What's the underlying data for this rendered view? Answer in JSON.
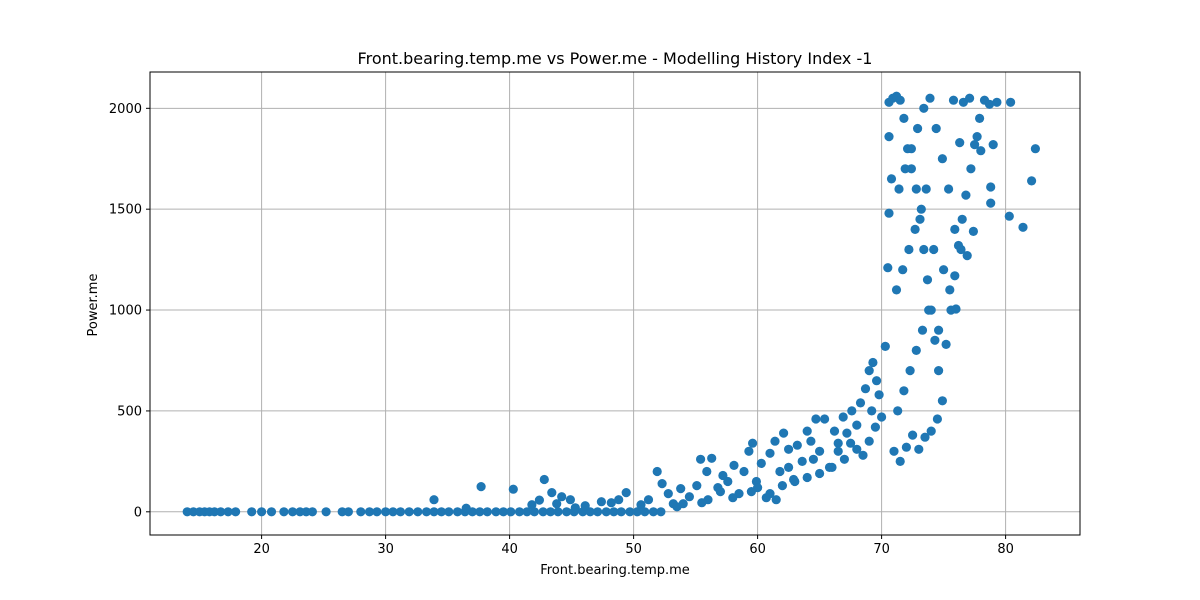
{
  "chart_data": {
    "type": "scatter",
    "title": "Front.bearing.temp.me vs Power.me - Modelling History Index -1",
    "xlabel": "Front.bearing.temp.me",
    "ylabel": "Power.me",
    "xlim": [
      11,
      86
    ],
    "ylim": [
      -115,
      2180
    ],
    "xticks": [
      20,
      30,
      40,
      50,
      60,
      70,
      80
    ],
    "yticks": [
      0,
      500,
      1000,
      1500,
      2000
    ],
    "grid": true,
    "legend": "none",
    "marker_color": "#1f77b4",
    "series": [
      {
        "points": [
          [
            14.0,
            0
          ],
          [
            14.5,
            0
          ],
          [
            15.0,
            0
          ],
          [
            15.4,
            0
          ],
          [
            15.8,
            0
          ],
          [
            16.2,
            0
          ],
          [
            16.7,
            0
          ],
          [
            17.3,
            0
          ],
          [
            17.9,
            0
          ],
          [
            19.2,
            0
          ],
          [
            20.0,
            0
          ],
          [
            20.8,
            0
          ],
          [
            21.8,
            0
          ],
          [
            22.5,
            0
          ],
          [
            23.1,
            0
          ],
          [
            23.6,
            0
          ],
          [
            24.1,
            0
          ],
          [
            25.2,
            0
          ],
          [
            26.5,
            0
          ],
          [
            27.0,
            0
          ],
          [
            28.0,
            0
          ],
          [
            28.7,
            0
          ],
          [
            29.3,
            0
          ],
          [
            30.0,
            0
          ],
          [
            30.6,
            0
          ],
          [
            31.2,
            0
          ],
          [
            31.9,
            0
          ],
          [
            32.6,
            0
          ],
          [
            33.3,
            0
          ],
          [
            33.9,
            0
          ],
          [
            34.5,
            0
          ],
          [
            35.1,
            0
          ],
          [
            35.8,
            0
          ],
          [
            36.4,
            0
          ],
          [
            37.0,
            0
          ],
          [
            37.6,
            0
          ],
          [
            38.2,
            0
          ],
          [
            38.9,
            0
          ],
          [
            39.5,
            0
          ],
          [
            40.1,
            0
          ],
          [
            40.8,
            0
          ],
          [
            41.4,
            0
          ],
          [
            42.0,
            0
          ],
          [
            42.7,
            0
          ],
          [
            43.3,
            0
          ],
          [
            43.9,
            0
          ],
          [
            44.6,
            0
          ],
          [
            45.2,
            0
          ],
          [
            45.9,
            0
          ],
          [
            46.5,
            0
          ],
          [
            47.1,
            0
          ],
          [
            47.8,
            0
          ],
          [
            48.4,
            0
          ],
          [
            49.0,
            0
          ],
          [
            49.7,
            0
          ],
          [
            50.3,
            0
          ],
          [
            50.9,
            0
          ],
          [
            51.6,
            0
          ],
          [
            52.2,
            0
          ],
          [
            33.9,
            60
          ],
          [
            36.5,
            18
          ],
          [
            37.7,
            125
          ],
          [
            40.3,
            112
          ],
          [
            41.8,
            35
          ],
          [
            42.4,
            58
          ],
          [
            42.8,
            160
          ],
          [
            43.4,
            95
          ],
          [
            43.8,
            40
          ],
          [
            44.2,
            75
          ],
          [
            44.9,
            60
          ],
          [
            45.3,
            20
          ],
          [
            46.1,
            30
          ],
          [
            47.4,
            50
          ],
          [
            48.2,
            45
          ],
          [
            48.8,
            60
          ],
          [
            49.4,
            95
          ],
          [
            50.6,
            35
          ],
          [
            51.2,
            60
          ],
          [
            51.9,
            200
          ],
          [
            52.3,
            140
          ],
          [
            52.8,
            90
          ],
          [
            53.2,
            40
          ],
          [
            53.8,
            115
          ],
          [
            54.5,
            75
          ],
          [
            55.1,
            130
          ],
          [
            55.4,
            260
          ],
          [
            55.9,
            200
          ],
          [
            56.3,
            265
          ],
          [
            56.8,
            120
          ],
          [
            57.2,
            180
          ],
          [
            57.6,
            150
          ],
          [
            58.1,
            230
          ],
          [
            58.5,
            90
          ],
          [
            58.9,
            200
          ],
          [
            59.3,
            300
          ],
          [
            59.6,
            340
          ],
          [
            59.9,
            150
          ],
          [
            60.3,
            240
          ],
          [
            60.7,
            70
          ],
          [
            61.0,
            290
          ],
          [
            61.4,
            350
          ],
          [
            61.8,
            200
          ],
          [
            62.1,
            390
          ],
          [
            62.5,
            310
          ],
          [
            62.9,
            160
          ],
          [
            63.2,
            330
          ],
          [
            63.6,
            250
          ],
          [
            64.0,
            400
          ],
          [
            64.3,
            350
          ],
          [
            64.7,
            460
          ],
          [
            65.0,
            300
          ],
          [
            65.4,
            460
          ],
          [
            65.8,
            220
          ],
          [
            66.2,
            400
          ],
          [
            66.5,
            340
          ],
          [
            66.9,
            470
          ],
          [
            67.2,
            390
          ],
          [
            67.6,
            500
          ],
          [
            68.0,
            430
          ],
          [
            68.3,
            540
          ],
          [
            68.7,
            610
          ],
          [
            69.0,
            700
          ],
          [
            69.3,
            740
          ],
          [
            69.6,
            650
          ],
          [
            69.8,
            580
          ],
          [
            54.0,
            40
          ],
          [
            56.0,
            60
          ],
          [
            57.0,
            100
          ],
          [
            58.0,
            70
          ],
          [
            60.0,
            120
          ],
          [
            61.0,
            90
          ],
          [
            62.0,
            130
          ],
          [
            63.0,
            150
          ],
          [
            64.0,
            170
          ],
          [
            65.0,
            190
          ],
          [
            66.0,
            220
          ],
          [
            67.0,
            260
          ],
          [
            68.0,
            310
          ],
          [
            68.5,
            280
          ],
          [
            69.0,
            350
          ],
          [
            69.5,
            420
          ],
          [
            70.0,
            470
          ],
          [
            62.5,
            220
          ],
          [
            64.5,
            260
          ],
          [
            66.5,
            300
          ],
          [
            67.5,
            340
          ],
          [
            69.2,
            500
          ],
          [
            61.5,
            60
          ],
          [
            59.5,
            100
          ],
          [
            55.5,
            45
          ],
          [
            53.5,
            25
          ],
          [
            70.3,
            820
          ],
          [
            70.5,
            1210
          ],
          [
            70.6,
            1480
          ],
          [
            70.8,
            1650
          ],
          [
            70.6,
            1860
          ],
          [
            70.6,
            2030
          ],
          [
            70.9,
            2050
          ],
          [
            71.2,
            2060
          ],
          [
            71.5,
            2040
          ],
          [
            71.8,
            1950
          ],
          [
            72.1,
            1800
          ],
          [
            72.4,
            1700
          ],
          [
            72.8,
            1600
          ],
          [
            73.1,
            1450
          ],
          [
            73.4,
            1300
          ],
          [
            73.7,
            1150
          ],
          [
            74.0,
            1000
          ],
          [
            74.3,
            850
          ],
          [
            74.6,
            700
          ],
          [
            74.9,
            550
          ],
          [
            75.2,
            830
          ],
          [
            75.6,
            1000
          ],
          [
            75.9,
            1170
          ],
          [
            76.2,
            1320
          ],
          [
            76.5,
            1450
          ],
          [
            76.8,
            1570
          ],
          [
            77.2,
            1700
          ],
          [
            77.5,
            1820
          ],
          [
            77.9,
            1950
          ],
          [
            78.3,
            2040
          ],
          [
            78.7,
            2020
          ],
          [
            79.0,
            1820
          ],
          [
            78.8,
            1530
          ],
          [
            78.8,
            1610
          ],
          [
            79.3,
            2030
          ],
          [
            80.4,
            2030
          ],
          [
            80.3,
            1465
          ],
          [
            81.4,
            1410
          ],
          [
            82.1,
            1640
          ],
          [
            82.4,
            1800
          ],
          [
            71.0,
            300
          ],
          [
            71.5,
            250
          ],
          [
            72.0,
            320
          ],
          [
            72.5,
            380
          ],
          [
            73.0,
            310
          ],
          [
            73.5,
            370
          ],
          [
            74.0,
            400
          ],
          [
            74.5,
            460
          ],
          [
            71.3,
            500
          ],
          [
            71.8,
            600
          ],
          [
            72.3,
            700
          ],
          [
            72.8,
            800
          ],
          [
            73.3,
            900
          ],
          [
            73.8,
            1000
          ],
          [
            71.2,
            1100
          ],
          [
            71.7,
            1200
          ],
          [
            72.2,
            1300
          ],
          [
            72.7,
            1400
          ],
          [
            73.2,
            1500
          ],
          [
            71.4,
            1600
          ],
          [
            71.9,
            1700
          ],
          [
            72.4,
            1800
          ],
          [
            72.9,
            1900
          ],
          [
            73.4,
            2000
          ],
          [
            73.9,
            2050
          ],
          [
            74.4,
            1900
          ],
          [
            74.9,
            1750
          ],
          [
            75.4,
            1600
          ],
          [
            75.9,
            1400
          ],
          [
            76.4,
            1300
          ],
          [
            76.9,
            1270
          ],
          [
            77.4,
            1390
          ],
          [
            75.0,
            1200
          ],
          [
            75.5,
            1100
          ],
          [
            76.0,
            1005
          ],
          [
            74.6,
            900
          ],
          [
            74.2,
            1300
          ],
          [
            73.6,
            1600
          ],
          [
            75.8,
            2040
          ],
          [
            76.6,
            2030
          ],
          [
            77.1,
            2050
          ],
          [
            77.7,
            1860
          ],
          [
            78.0,
            1790
          ],
          [
            76.3,
            1830
          ]
        ]
      }
    ]
  }
}
